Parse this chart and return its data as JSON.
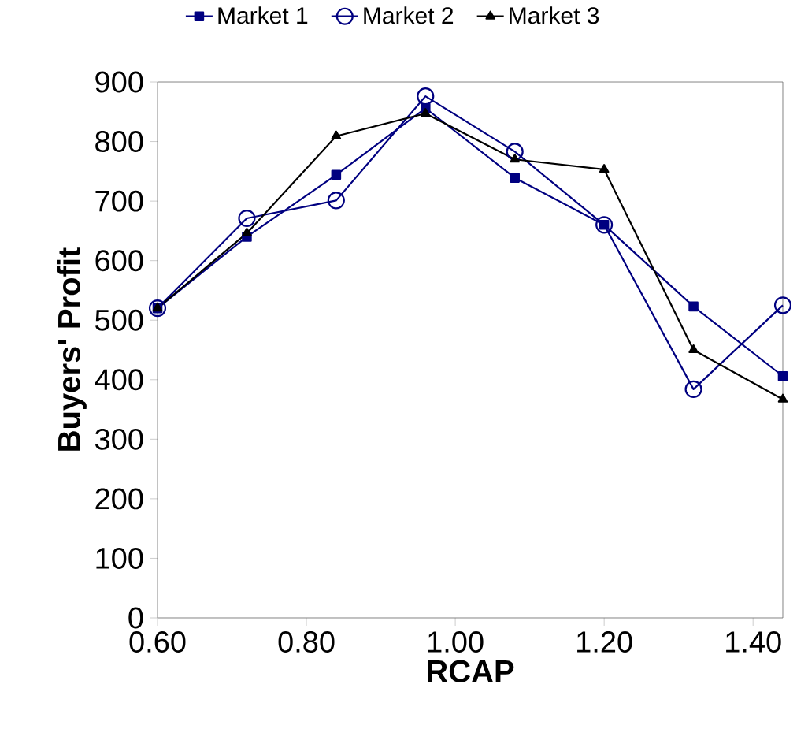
{
  "chart_data": {
    "type": "line",
    "xlabel": "RCAP",
    "ylabel": "Buyers'  Profit",
    "x": [
      0.6,
      0.72,
      0.84,
      0.96,
      1.08,
      1.2,
      1.32,
      1.44
    ],
    "series": [
      {
        "name": "Market 1",
        "color": "#000080",
        "marker": "square",
        "values": [
          520,
          640,
          744,
          856,
          739,
          660,
          523,
          406
        ]
      },
      {
        "name": "Market 2",
        "color": "#000080",
        "marker": "circle",
        "values": [
          520,
          671,
          701,
          876,
          783,
          660,
          384,
          525
        ]
      },
      {
        "name": "Market 3",
        "color": "#000000",
        "marker": "triangle",
        "values": [
          520,
          646,
          809,
          847,
          770,
          753,
          450,
          367
        ]
      }
    ],
    "xlim": [
      0.6,
      1.44
    ],
    "xticks": [
      {
        "value": 0.6,
        "label": "0.60"
      },
      {
        "value": 0.8,
        "label": "0.80"
      },
      {
        "value": 1.0,
        "label": "1.00"
      },
      {
        "value": 1.2,
        "label": "1.20"
      },
      {
        "value": 1.4,
        "label": "1.40"
      }
    ],
    "ylim": [
      0,
      900
    ],
    "yticks": [
      0,
      100,
      200,
      300,
      400,
      500,
      600,
      700,
      800,
      900
    ],
    "legend": "top",
    "grid": false,
    "line_style": "solid"
  }
}
